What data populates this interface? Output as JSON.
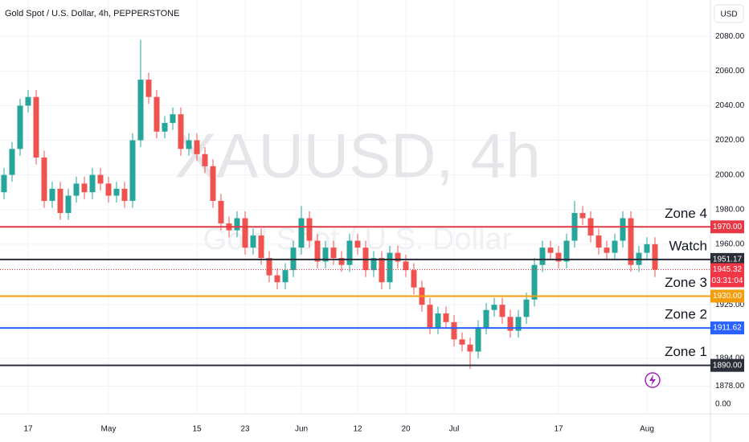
{
  "chart_data": {
    "type": "candlestick",
    "title": "Gold Spot / U.S. Dollar, 4h, PEPPERSTONE",
    "watermark": "XAUUSD, 4h",
    "watermark_subtitle": "Gold Spot / U.S. Dollar",
    "currency": "USD",
    "up_color": "#26a69a",
    "down_color": "#ef5350",
    "categories": [
      null,
      null,
      null,
      "17",
      null,
      null,
      null,
      null,
      null,
      null,
      null,
      null,
      null,
      "May",
      null,
      null,
      null,
      null,
      null,
      null,
      null,
      null,
      null,
      null,
      "15",
      null,
      null,
      null,
      null,
      null,
      "23",
      null,
      null,
      null,
      null,
      null,
      null,
      "Jun",
      null,
      null,
      null,
      null,
      null,
      null,
      "12",
      null,
      null,
      null,
      null,
      null,
      "20",
      null,
      null,
      null,
      null,
      null,
      "Jul",
      null,
      null,
      null,
      null,
      null,
      null,
      null,
      null,
      null,
      null,
      null,
      null,
      "17",
      null,
      null,
      null,
      null,
      null,
      null,
      null,
      null,
      null,
      null,
      "Aug",
      null
    ],
    "open": [
      1990,
      2000,
      2015,
      2040,
      2045,
      2010,
      1985,
      1992,
      1978,
      1988,
      1995,
      1990,
      2000,
      1995,
      1988,
      1992,
      1985,
      2020,
      2055,
      2045,
      2025,
      2030,
      2035,
      2015,
      2020,
      2012,
      2005,
      1985,
      1972,
      1968,
      1975,
      1958,
      1965,
      1952,
      1942,
      1938,
      1945,
      1958,
      1975,
      1962,
      1950,
      1958,
      1952,
      1948,
      1962,
      1958,
      1945,
      1952,
      1938,
      1955,
      1950,
      1945,
      1935,
      1925,
      1912,
      1920,
      1915,
      1905,
      1902,
      1898,
      1912,
      1922,
      1925,
      1918,
      1910,
      1918,
      1928,
      1948,
      1958,
      1955,
      1950,
      1962,
      1978,
      1975,
      1965,
      1958,
      1955,
      1962,
      1975,
      1948,
      1955,
      1960
    ],
    "high": [
      2004,
      2019,
      2044,
      2049,
      2049,
      2014,
      1996,
      1996,
      1992,
      1999,
      1999,
      2004,
      2004,
      1999,
      1996,
      1996,
      2024,
      2078,
      2059,
      2049,
      2034,
      2039,
      2039,
      2024,
      2024,
      2016,
      2009,
      1989,
      1976,
      1979,
      1979,
      1969,
      1969,
      1956,
      1946,
      1949,
      1962,
      1982,
      1979,
      1966,
      1962,
      1962,
      1956,
      1966,
      1966,
      1962,
      1956,
      1956,
      1959,
      1959,
      1954,
      1949,
      1939,
      1929,
      1924,
      1924,
      1919,
      1909,
      1906,
      1916,
      1926,
      1929,
      1929,
      1922,
      1922,
      1932,
      1952,
      1962,
      1962,
      1959,
      1966,
      1985,
      1982,
      1979,
      1969,
      1962,
      1966,
      1979,
      1979,
      1959,
      1964,
      1964
    ],
    "low": [
      1986,
      1996,
      2011,
      2036,
      2006,
      1981,
      1981,
      1974,
      1974,
      1984,
      1986,
      1986,
      1991,
      1984,
      1984,
      1981,
      1981,
      2016,
      2041,
      2021,
      2021,
      2026,
      2011,
      2011,
      2008,
      2001,
      1981,
      1968,
      1964,
      1964,
      1954,
      1954,
      1948,
      1938,
      1934,
      1934,
      1941,
      1954,
      1958,
      1946,
      1946,
      1948,
      1944,
      1944,
      1954,
      1941,
      1941,
      1934,
      1934,
      1946,
      1941,
      1931,
      1921,
      1908,
      1908,
      1911,
      1901,
      1898,
      1888,
      1894,
      1908,
      1918,
      1914,
      1906,
      1906,
      1914,
      1924,
      1944,
      1951,
      1946,
      1946,
      1958,
      1971,
      1961,
      1954,
      1951,
      1951,
      1958,
      1944,
      1944,
      1951,
      1941
    ],
    "close": [
      2000,
      2015,
      2040,
      2045,
      2010,
      1985,
      1992,
      1978,
      1988,
      1995,
      1990,
      2000,
      1995,
      1988,
      1992,
      1985,
      2020,
      2055,
      2045,
      2025,
      2030,
      2035,
      2015,
      2020,
      2012,
      2005,
      1985,
      1972,
      1968,
      1975,
      1958,
      1965,
      1952,
      1942,
      1938,
      1945,
      1958,
      1975,
      1962,
      1950,
      1958,
      1952,
      1948,
      1962,
      1958,
      1945,
      1952,
      1938,
      1955,
      1950,
      1945,
      1935,
      1925,
      1912,
      1920,
      1915,
      1905,
      1902,
      1898,
      1912,
      1922,
      1925,
      1918,
      1910,
      1918,
      1928,
      1948,
      1958,
      1955,
      1950,
      1962,
      1978,
      1975,
      1965,
      1958,
      1955,
      1962,
      1975,
      1948,
      1955,
      1960,
      1945.32
    ],
    "ylim": [
      1862,
      2101
    ],
    "yticks": [
      {
        "value": 2080,
        "label": "2080.00"
      },
      {
        "value": 2060,
        "label": "2060.00"
      },
      {
        "value": 2040,
        "label": "2040.00"
      },
      {
        "value": 2020,
        "label": "2020.00"
      },
      {
        "value": 2000,
        "label": "2000.00"
      },
      {
        "value": 1980,
        "label": "1980.00"
      },
      {
        "value": 1960,
        "label": "1960.00"
      },
      {
        "value": 1925,
        "label": "1925.00"
      },
      {
        "value": 1894,
        "label": "1894.00"
      },
      {
        "value": 1878,
        "label": "1878.00"
      }
    ],
    "extra_axis_label": "0.00",
    "grid": true,
    "levels": [
      {
        "label": "Zone 4",
        "value": 1970,
        "value_label": "1970.00",
        "color": "#e53946"
      },
      {
        "label": "Watch",
        "value": 1951.17,
        "color": "#2a2e39"
      },
      {
        "label": "Zone 3",
        "value": 1930,
        "value_label": "1930.00",
        "color": "#f59d0a"
      },
      {
        "label": "Zone 2",
        "value": 1911.62,
        "color": "#2962ff"
      },
      {
        "label": "Zone 1",
        "value": 1890,
        "value_label": "1890.00",
        "color": "#2a2e39"
      }
    ],
    "current": {
      "value": 1945.32,
      "countdown": "03:31:04",
      "color": "#f23645"
    }
  }
}
